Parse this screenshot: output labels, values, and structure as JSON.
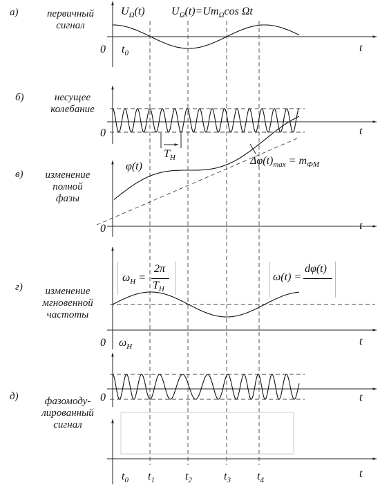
{
  "panels": [
    {
      "letter": "а)",
      "label": "первичный\nсигнал"
    },
    {
      "letter": "б)",
      "label": "несущее\nколебание"
    },
    {
      "letter": "в)",
      "label": "изменение\nполной\nфазы"
    },
    {
      "letter": "г)",
      "label": "изменение\nмгновенной\nчастоты"
    },
    {
      "letter": "д)",
      "label": "фазомоду-\nлированный\nсигнал"
    }
  ],
  "formulas": {
    "u_omega": "U",
    "u_omega_sub": "Ω",
    "u_omega_arg": "(t)",
    "u_def": "U",
    "u_def_sub": "Ω",
    "u_def_rhs": "(t)=Um",
    "u_def_sub2": "Ω",
    "u_def_cos": "cos Ω",
    "u_def_t": "t",
    "phi": "φ(t)",
    "delta_phi": "Δφ(t)",
    "delta_phi_sub": "max",
    "delta_phi_eq": " = m",
    "delta_phi_sub2": "ФМ",
    "omega_h": "ω",
    "omega_h_sub": "H",
    "omega_h_eq": "=",
    "two_pi": "2π",
    "t_h": "T",
    "t_h_sub": "H",
    "omega_t": "ω(t) =",
    "dphi": "dφ(t)",
    "period": "T",
    "period_sub": "H",
    "omega_axis": "ω",
    "omega_axis_sub": "H"
  },
  "axis": {
    "t": "t",
    "zero": "0",
    "t0": "t",
    "t0_sub": "0"
  },
  "time_marks": [
    {
      "label": "t",
      "sub": "0"
    },
    {
      "label": "t",
      "sub": "1"
    },
    {
      "label": "t",
      "sub": "2"
    },
    {
      "label": "t",
      "sub": "3"
    },
    {
      "label": "t",
      "sub": "4"
    }
  ],
  "colors": {
    "ink": "#1a1a1a",
    "box": "#cccccc"
  }
}
